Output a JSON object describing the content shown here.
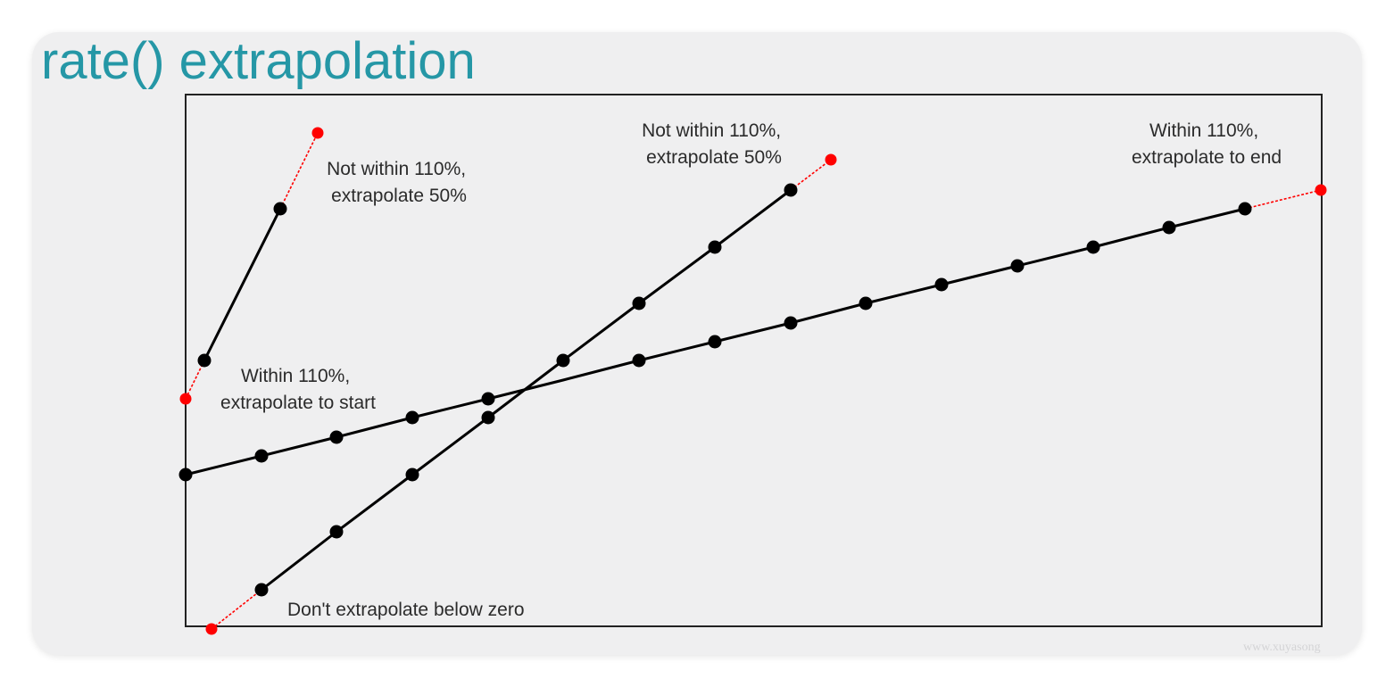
{
  "slide": {
    "title": "rate() extrapolation",
    "watermark": "www.xuyasong",
    "colors": {
      "title": "#2597a6",
      "sample_line": "#000000",
      "extrapolation": "#ff0000",
      "background": "#efeff0"
    }
  },
  "annotations": {
    "steep_top": {
      "line1": "Not within 110%,",
      "line2": "extrapolate 50%"
    },
    "steep_bottom": {
      "line1": "Within 110%,",
      "line2": "extrapolate to start"
    },
    "mid_top": {
      "line1": "Not within 110%,",
      "line2": "extrapolate 50%"
    },
    "mid_bottom": {
      "line1": "Don't extrapolate below zero"
    },
    "shallow_end": {
      "line1": "Within 110%,",
      "line2": "extrapolate to end"
    }
  }
}
